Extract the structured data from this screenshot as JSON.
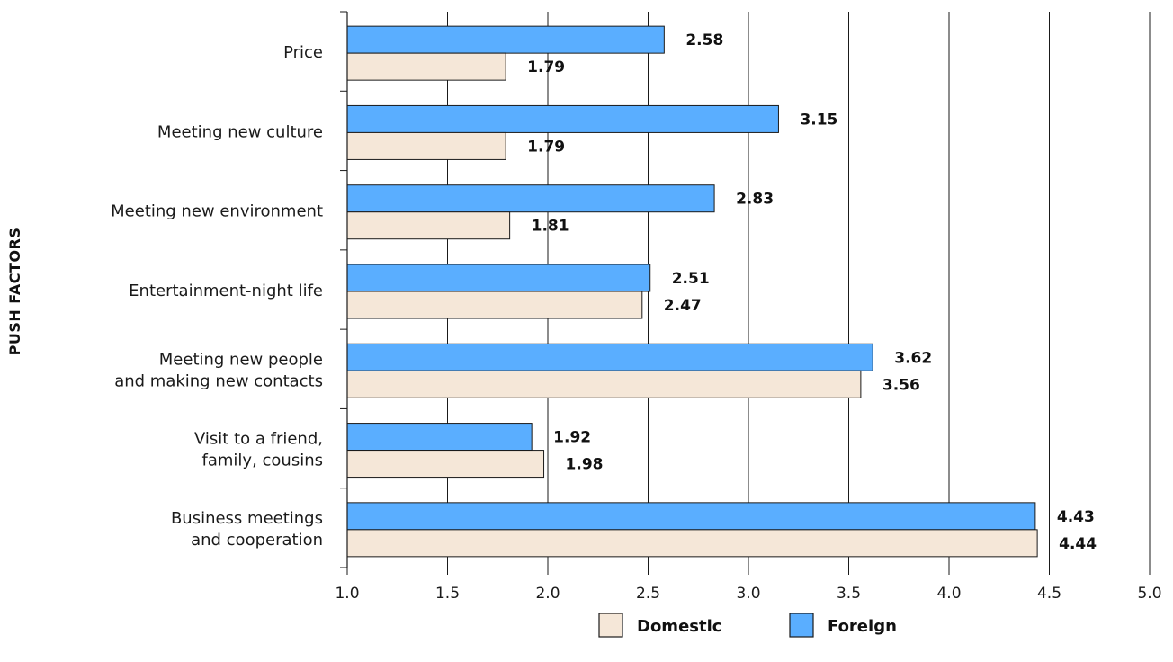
{
  "chart_data": {
    "type": "bar",
    "orientation": "horizontal",
    "title": "",
    "xlabel": "",
    "ylabel": "PUSH FACTORS",
    "xlim": [
      1.0,
      5.0
    ],
    "x_ticks": [
      "1.0",
      "1.5",
      "2.0",
      "2.5",
      "3.0",
      "3.5",
      "4.0",
      "4.5",
      "5.0"
    ],
    "grid": "vertical",
    "legend_position": "bottom-center",
    "categories": [
      [
        "Price"
      ],
      [
        "Meeting new culture"
      ],
      [
        "Meeting new environment"
      ],
      [
        "Entertainment-night life"
      ],
      [
        "Meeting new people",
        "and making new contacts"
      ],
      [
        "Visit to a friend,",
        "family, cousins"
      ],
      [
        "Business meetings",
        "and cooperation"
      ]
    ],
    "series": [
      {
        "name": "Foreign",
        "color": "#5aaeff",
        "values": [
          2.58,
          3.15,
          2.83,
          2.51,
          3.62,
          1.92,
          4.43
        ],
        "labels": [
          "2.58",
          "3.15",
          "2.83",
          "2.51",
          "3.62",
          "1.92",
          "4.43"
        ]
      },
      {
        "name": "Domestic",
        "color": "#f5e7d8",
        "values": [
          1.79,
          1.79,
          1.81,
          2.47,
          3.56,
          1.98,
          4.44
        ],
        "labels": [
          "1.79",
          "1.79",
          "1.81",
          "2.47",
          "3.56",
          "1.98",
          "4.44"
        ]
      }
    ],
    "legend": [
      {
        "name": "Domestic",
        "color": "#f5e7d8"
      },
      {
        "name": "Foreign",
        "color": "#5aaeff"
      }
    ]
  }
}
